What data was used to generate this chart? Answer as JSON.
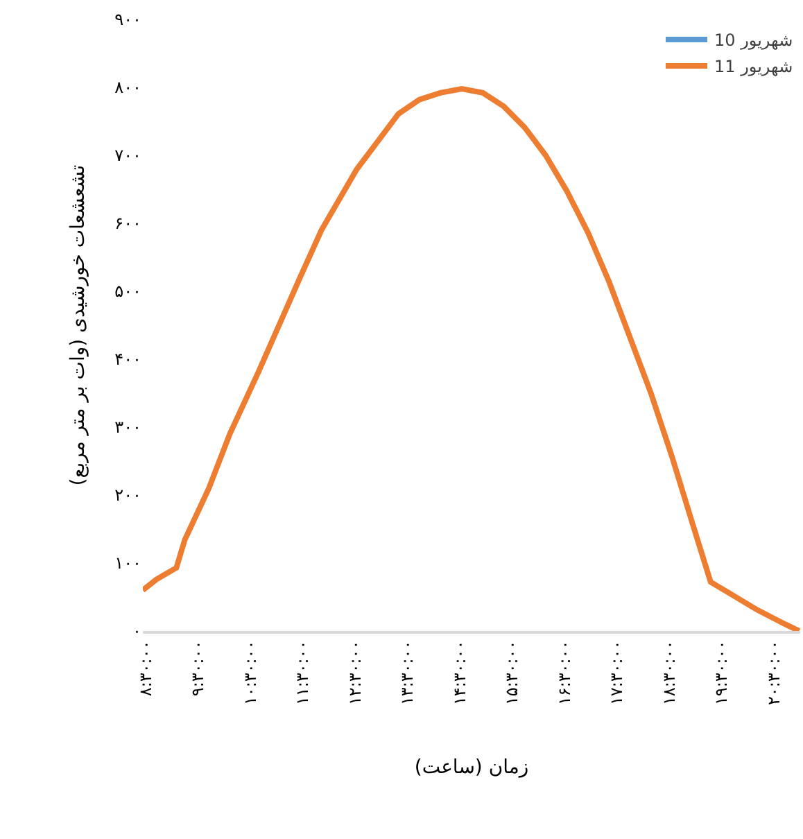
{
  "chart_data": {
    "type": "line",
    "xlabel": "زمان (ساعت)",
    "ylabel": "تشعشعات خورشیدی (وات بر متر مربع)",
    "x": [
      8.45,
      8.71,
      9.09,
      9.25,
      9.71,
      10.11,
      10.65,
      11.05,
      11.45,
      11.86,
      12.53,
      12.93,
      13.33,
      13.73,
      14.13,
      14.54,
      14.94,
      15.34,
      15.74,
      16.14,
      16.54,
      16.95,
      17.35,
      17.75,
      18.15,
      18.55,
      18.96,
      19.29,
      19.64,
      20.18,
      20.71,
      20.98
    ],
    "series": [
      {
        "name": "10 شهریور",
        "color": "#5b9bd5",
        "values": [
          null,
          null,
          null,
          null,
          null,
          null,
          null,
          null,
          null,
          null,
          null,
          null,
          null,
          null,
          null,
          null,
          null,
          null,
          null,
          null,
          null,
          null,
          null,
          null,
          null,
          null,
          null,
          null,
          null,
          null,
          null,
          null
        ]
      },
      {
        "name": "11 شهریور",
        "color": "#ed7d31",
        "values": [
          60,
          76,
          93,
          134,
          210,
          290,
          380,
          450,
          520,
          590,
          679,
          720,
          761,
          782,
          792,
          798,
          792,
          772,
          741,
          700,
          648,
          586,
          514,
          432,
          350,
          257,
          154,
          72,
          56,
          31,
          10,
          0
        ]
      }
    ],
    "xlim": [
      8.45,
      21.0
    ],
    "xticks": [
      {
        "value": 8.5,
        "label": "۸:۳۰:۰۰"
      },
      {
        "value": 9.5,
        "label": "۹:۳۰:۰۰"
      },
      {
        "value": 10.5,
        "label": "۱۰:۳۰:۰۰"
      },
      {
        "value": 11.5,
        "label": "۱۱:۳۰:۰۰"
      },
      {
        "value": 12.5,
        "label": "۱۲:۳۰:۰۰"
      },
      {
        "value": 13.5,
        "label": "۱۳:۳۰:۰۰"
      },
      {
        "value": 14.5,
        "label": "۱۴:۳۰:۰۰"
      },
      {
        "value": 15.5,
        "label": "۱۵:۳۰:۰۰"
      },
      {
        "value": 16.5,
        "label": "۱۶:۳۰:۰۰"
      },
      {
        "value": 17.5,
        "label": "۱۷:۳۰:۰۰"
      },
      {
        "value": 18.5,
        "label": "۱۸:۳۰:۰۰"
      },
      {
        "value": 19.5,
        "label": "۱۹:۳۰:۰۰"
      },
      {
        "value": 20.5,
        "label": "۲۰:۳۰:۰۰"
      }
    ],
    "ylim": [
      0,
      900
    ],
    "yticks": [
      {
        "value": 0,
        "label": "۰"
      },
      {
        "value": 100,
        "label": "۱۰۰"
      },
      {
        "value": 200,
        "label": "۲۰۰"
      },
      {
        "value": 300,
        "label": "۳۰۰"
      },
      {
        "value": 400,
        "label": "۴۰۰"
      },
      {
        "value": 500,
        "label": "۵۰۰"
      },
      {
        "value": 600,
        "label": "۶۰۰"
      },
      {
        "value": 700,
        "label": "۷۰۰"
      },
      {
        "value": 800,
        "label": "۸۰۰"
      },
      {
        "value": 900,
        "label": "۹۰۰"
      }
    ],
    "grid": false,
    "legend": "top right",
    "marker": "none",
    "line_style": "solid"
  }
}
